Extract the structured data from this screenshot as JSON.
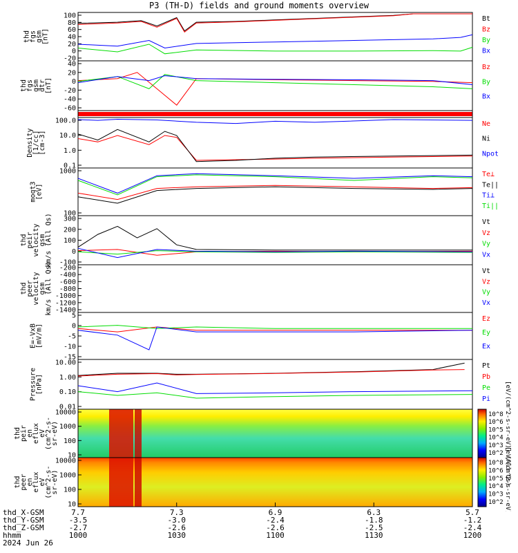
{
  "title": "P3 (TH-D) fields and ground moments overview",
  "colors": {
    "black": "#000000",
    "red": "#ff0000",
    "green": "#00dd00",
    "blue": "#0000ff",
    "frame": "#000000"
  },
  "chart_data": [
    {
      "type": "line",
      "ylabel": [
        "thd",
        "fgs",
        "gsm",
        "[nT]"
      ],
      "yticks": [
        "100",
        "80",
        "60",
        "40",
        "20",
        "0",
        "-20"
      ],
      "ylim": [
        -20,
        100
      ],
      "series": [
        {
          "name": "Bt",
          "color": "black",
          "x": [
            0,
            0.1,
            0.16,
            0.2,
            0.25,
            0.27,
            0.3,
            0.4,
            0.5,
            0.6,
            0.7,
            0.8,
            0.85,
            1.0
          ],
          "y": [
            75,
            78,
            82,
            68,
            90,
            55,
            78,
            80,
            84,
            88,
            92,
            96,
            100,
            100
          ]
        },
        {
          "name": "Bz",
          "color": "red",
          "x": [
            0,
            0.1,
            0.16,
            0.2,
            0.25,
            0.27,
            0.3,
            0.4,
            0.5,
            0.6,
            0.7,
            0.8,
            0.85,
            1.0
          ],
          "y": [
            72,
            76,
            80,
            65,
            88,
            52,
            76,
            79,
            83,
            87,
            91,
            95,
            100,
            100
          ]
        },
        {
          "name": "By",
          "color": "green",
          "x": [
            0,
            0.1,
            0.18,
            0.22,
            0.3,
            0.5,
            0.7,
            0.9,
            0.97,
            1.0
          ],
          "y": [
            10,
            0,
            20,
            -5,
            5,
            2,
            2,
            3,
            2,
            12
          ]
        },
        {
          "name": "Bx",
          "color": "blue",
          "x": [
            0,
            0.1,
            0.18,
            0.22,
            0.3,
            0.5,
            0.7,
            0.9,
            0.97,
            1.0
          ],
          "y": [
            20,
            15,
            30,
            10,
            22,
            26,
            30,
            34,
            38,
            45
          ]
        }
      ]
    },
    {
      "type": "line",
      "ylabel": [
        "thd",
        "fgs",
        "gsm",
        "dtr",
        "[nT]"
      ],
      "yticks": [
        "40",
        "20",
        "0",
        "-20",
        "-40",
        "-60"
      ],
      "ylim": [
        -70,
        45
      ],
      "series": [
        {
          "name": "Bz",
          "color": "red",
          "x": [
            0,
            0.1,
            0.15,
            0.2,
            0.25,
            0.3,
            0.5,
            0.7,
            0.9,
            1.0
          ],
          "y": [
            0,
            5,
            20,
            -20,
            -60,
            5,
            2,
            0,
            -2,
            -5
          ]
        },
        {
          "name": "By",
          "color": "green",
          "x": [
            0,
            0.1,
            0.18,
            0.22,
            0.3,
            0.5,
            0.7,
            0.9,
            1.0
          ],
          "y": [
            -2,
            10,
            -20,
            15,
            0,
            -5,
            -10,
            -15,
            -20
          ]
        },
        {
          "name": "Bx",
          "color": "blue",
          "x": [
            0,
            0.1,
            0.18,
            0.22,
            0.3,
            0.5,
            0.7,
            0.9,
            1.0
          ],
          "y": [
            -5,
            10,
            0,
            12,
            5,
            3,
            2,
            0,
            -10
          ]
        }
      ]
    },
    {
      "type": "bar",
      "ylabel": [],
      "yticks": [],
      "series": []
    },
    {
      "type": "line",
      "scale": "log",
      "ylabel": [
        "Density",
        "[1/cc]",
        "[cm-3]"
      ],
      "yticks": [
        "100.0",
        "10.0",
        "1.0",
        "0.1"
      ],
      "ylim": [
        0.07,
        100
      ],
      "series": [
        {
          "name": "Ne",
          "color": "red",
          "x": [
            0,
            0.05,
            0.1,
            0.18,
            0.22,
            0.25,
            0.3,
            0.4,
            0.5,
            0.6,
            0.8,
            1.0
          ],
          "y": [
            5,
            3,
            8,
            2,
            8,
            6,
            0.18,
            0.2,
            0.22,
            0.25,
            0.3,
            0.35
          ]
        },
        {
          "name": "Ni",
          "color": "black",
          "x": [
            0,
            0.05,
            0.1,
            0.18,
            0.22,
            0.25,
            0.3,
            0.4,
            0.5,
            0.6,
            0.8,
            1.0
          ],
          "y": [
            10,
            4,
            20,
            3,
            15,
            8,
            0.15,
            0.18,
            0.25,
            0.3,
            0.35,
            0.4
          ]
        },
        {
          "name": "Npot",
          "color": "blue",
          "x": [
            0,
            0.05,
            0.1,
            0.2,
            0.3,
            0.4,
            0.5,
            0.6,
            0.8,
            1.0
          ],
          "y": [
            90,
            80,
            95,
            85,
            60,
            50,
            70,
            60,
            90,
            80
          ]
        }
      ]
    },
    {
      "type": "line",
      "scale": "log",
      "ylabel": [
        "moqt3",
        "[eV]"
      ],
      "yticks": [
        "1000",
        "100"
      ],
      "ylim": [
        30,
        4000
      ],
      "series": [
        {
          "name": "Te⊥",
          "color": "red",
          "x": [
            0,
            0.1,
            0.2,
            0.3,
            0.5,
            0.7,
            0.9,
            1.0
          ],
          "y": [
            300,
            150,
            500,
            600,
            700,
            600,
            500,
            550
          ]
        },
        {
          "name": "Te||",
          "color": "black",
          "x": [
            0,
            0.1,
            0.2,
            0.3,
            0.5,
            0.7,
            0.9,
            1.0
          ],
          "y": [
            200,
            100,
            400,
            500,
            600,
            500,
            450,
            500
          ]
        },
        {
          "name": "Ti⊥",
          "color": "blue",
          "x": [
            0,
            0.1,
            0.2,
            0.3,
            0.5,
            0.7,
            0.9,
            1.0
          ],
          "y": [
            1500,
            300,
            2000,
            2500,
            2000,
            1500,
            2000,
            1800
          ]
        },
        {
          "name": "Ti||",
          "color": "green",
          "x": [
            0,
            0.1,
            0.2,
            0.3,
            0.5,
            0.7,
            0.9,
            1.0
          ],
          "y": [
            1200,
            250,
            1800,
            2200,
            1800,
            1200,
            1800,
            1600
          ]
        }
      ]
    },
    {
      "type": "line",
      "ylabel": [
        "thd",
        "peir",
        "velocity",
        "gsm",
        "km/s (All Qs)"
      ],
      "yticks": [
        "300",
        "200",
        "100",
        "0",
        "-100"
      ],
      "ylim": [
        -100,
        300
      ],
      "series": [
        {
          "name": "Vt",
          "color": "black",
          "x": [
            0,
            0.05,
            0.1,
            0.15,
            0.2,
            0.25,
            0.3,
            0.5,
            0.7,
            1.0
          ],
          "y": [
            40,
            150,
            220,
            120,
            200,
            60,
            20,
            15,
            15,
            15
          ]
        },
        {
          "name": "Vz",
          "color": "red",
          "x": [
            0,
            0.1,
            0.2,
            0.3,
            0.5,
            0.7,
            1.0
          ],
          "y": [
            10,
            20,
            -30,
            0,
            5,
            0,
            5
          ]
        },
        {
          "name": "Vy",
          "color": "green",
          "x": [
            0,
            0.1,
            0.2,
            0.3,
            0.5,
            0.7,
            1.0
          ],
          "y": [
            0,
            -20,
            10,
            0,
            -5,
            0,
            -5
          ]
        },
        {
          "name": "Vx",
          "color": "blue",
          "x": [
            0,
            0.1,
            0.2,
            0.3,
            0.5,
            0.7,
            1.0
          ],
          "y": [
            30,
            -50,
            20,
            5,
            0,
            5,
            0
          ]
        }
      ]
    },
    {
      "type": "line",
      "ylabel": [
        "thd",
        "peer",
        "velocity",
        "gsm",
        "km/s (All Qs)"
      ],
      "yticks": [
        "-200",
        "-400",
        "-600",
        "-800",
        "-1000",
        "-1200",
        "-1400"
      ],
      "ylim": [
        -1400,
        -100
      ],
      "series": [
        {
          "name": "Vt",
          "color": "black",
          "x": [],
          "y": []
        },
        {
          "name": "Vz",
          "color": "red",
          "x": [],
          "y": []
        },
        {
          "name": "Vy",
          "color": "green",
          "x": [],
          "y": []
        },
        {
          "name": "Vx",
          "color": "blue",
          "x": [],
          "y": []
        }
      ]
    },
    {
      "type": "line",
      "ylabel": [
        "E=-VxB",
        "[mV/m]"
      ],
      "yticks": [
        "5",
        "0",
        "-5",
        "-10",
        "-15"
      ],
      "ylim": [
        -17,
        10
      ],
      "series": [
        {
          "name": "Ez",
          "color": "red",
          "x": [
            0,
            0.1,
            0.2,
            0.3,
            0.5,
            0.7,
            1.0
          ],
          "y": [
            1,
            -1,
            2,
            0,
            0,
            0,
            0
          ]
        },
        {
          "name": "Ey",
          "color": "green",
          "x": [
            0,
            0.1,
            0.2,
            0.3,
            0.5,
            0.7,
            1.0
          ],
          "y": [
            2,
            3,
            1,
            2,
            1,
            1,
            1
          ]
        },
        {
          "name": "Ex",
          "color": "blue",
          "x": [
            0,
            0.1,
            0.18,
            0.2,
            0.3,
            0.5,
            0.7,
            1.0
          ],
          "y": [
            0,
            -3,
            -12,
            2,
            -1,
            -1,
            -1,
            0
          ]
        }
      ]
    },
    {
      "type": "line",
      "scale": "log",
      "ylabel": [
        "Pressure",
        "[nPa]"
      ],
      "yticks": [
        "10.00",
        "1.00",
        "0.10",
        "0.01"
      ],
      "ylim": [
        0.005,
        30
      ],
      "series": [
        {
          "name": "Pt",
          "color": "black",
          "x": [
            0,
            0.1,
            0.2,
            0.25,
            0.3,
            0.5,
            0.7,
            0.9,
            0.98
          ],
          "y": [
            2,
            3,
            3,
            2.5,
            2.5,
            3,
            4,
            6,
            20
          ]
        },
        {
          "name": "Pb",
          "color": "red",
          "x": [
            0,
            0.1,
            0.2,
            0.25,
            0.3,
            0.5,
            0.7,
            0.9,
            0.98
          ],
          "y": [
            1.8,
            2.5,
            2.8,
            2.2,
            2.4,
            2.9,
            3.8,
            5.5,
            6
          ]
        },
        {
          "name": "Pe",
          "color": "green",
          "x": [
            0,
            0.1,
            0.2,
            0.3,
            0.5,
            0.7,
            1.0
          ],
          "y": [
            0.1,
            0.05,
            0.08,
            0.03,
            0.04,
            0.05,
            0.06
          ]
        },
        {
          "name": "Pi",
          "color": "blue",
          "x": [
            0,
            0.1,
            0.2,
            0.3,
            0.5,
            0.7,
            1.0
          ],
          "y": [
            0.3,
            0.1,
            0.5,
            0.07,
            0.08,
            0.1,
            0.12
          ]
        }
      ]
    },
    {
      "type": "heatmap",
      "ylabel": [
        "thd",
        "peir",
        "en",
        "eflux",
        "eV",
        "(cm^2-s-",
        "sr-eV)"
      ],
      "yticks": [
        "10000",
        "1000",
        "100",
        "10"
      ],
      "colorbar": {
        "ticks": [
          "10^8",
          "10^6",
          "10^5",
          "10^4",
          "10^3",
          "10^2"
        ],
        "label": "[eV/(cm^2-s-sr-eV)] (All Qs)"
      }
    },
    {
      "type": "heatmap",
      "ylabel": [
        "thd",
        "peer",
        "en",
        "eflux",
        "eV",
        "(cm^2-s-",
        "sr-eV)"
      ],
      "yticks": [
        "10000",
        "1000",
        "100",
        "10"
      ],
      "colorbar": {
        "ticks": [
          "10^8",
          "10^6",
          "10^5",
          "10^4",
          "10^3",
          "10^2"
        ],
        "label": "[eV/(cm^2-s-sr-eV)]"
      }
    }
  ],
  "ephemeris": {
    "rows": [
      {
        "label": "thd_X-GSM",
        "values": [
          "7.7",
          "7.3",
          "6.9",
          "6.3",
          "5.7"
        ]
      },
      {
        "label": "thd_Y-GSM",
        "values": [
          "-3.5",
          "-3.0",
          "-2.4",
          "-1.8",
          "-1.2"
        ]
      },
      {
        "label": "thd_Z-GSM",
        "values": [
          "-2.7",
          "-2.6",
          "-2.6",
          "-2.5",
          "-2.4"
        ]
      },
      {
        "label": "hhmm",
        "values": [
          "1000",
          "1030",
          "1100",
          "1130",
          "1200"
        ]
      },
      {
        "label": "2024 Jun 26",
        "values": []
      }
    ]
  }
}
